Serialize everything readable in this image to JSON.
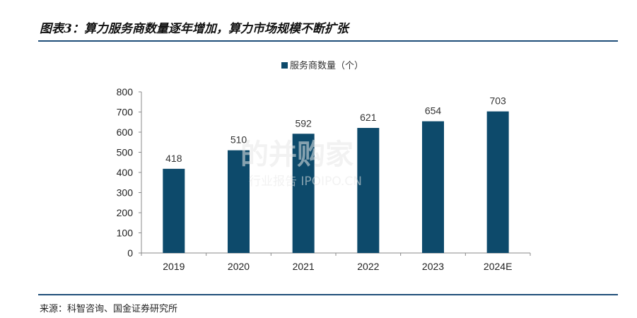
{
  "title": "图表3：算力服务商数量逐年增加，算力市场规模不断扩张",
  "source": "来源：科智咨询、国金证券研究所",
  "watermark": {
    "brand": "的并购家",
    "tagline": "行业报告 IPOIPO.CN"
  },
  "colors": {
    "bar": "#0d4a6b",
    "rule": "#1f4e79",
    "axis": "#888888"
  },
  "chart_data": {
    "type": "bar",
    "categories": [
      "2019",
      "2020",
      "2021",
      "2022",
      "2023",
      "2024E"
    ],
    "series": [
      {
        "name": "服务商数量（个）",
        "values": [
          418,
          510,
          592,
          621,
          654,
          703
        ]
      }
    ],
    "data_labels": [
      "418",
      "510",
      "592",
      "621",
      "654",
      "703"
    ],
    "y_ticks": [
      "0",
      "100",
      "200",
      "300",
      "400",
      "500",
      "600",
      "700",
      "800"
    ],
    "ylim": [
      0,
      800
    ],
    "grid": false,
    "legend_position": "top-center"
  }
}
